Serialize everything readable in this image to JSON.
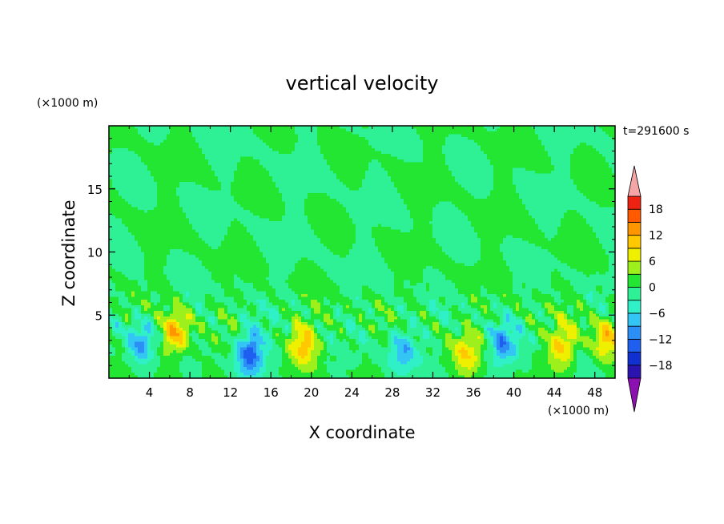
{
  "chart_data": {
    "type": "heatmap",
    "title": "vertical velocity",
    "xlabel": "X coordinate",
    "ylabel": "Z coordinate",
    "x_unit": "(×1000 m)",
    "y_unit": "(×1000 m)",
    "time_label": "t=291600 s",
    "xlim": [
      0,
      50
    ],
    "ylim": [
      0,
      20
    ],
    "x_ticks": [
      "4",
      "8",
      "12",
      "16",
      "20",
      "24",
      "28",
      "32",
      "36",
      "40",
      "44",
      "48"
    ],
    "x_tick_values": [
      4,
      8,
      12,
      16,
      20,
      24,
      28,
      32,
      36,
      40,
      44,
      48
    ],
    "y_ticks": [
      "5",
      "10",
      "15"
    ],
    "y_tick_values": [
      5,
      10,
      15
    ],
    "colorbar": {
      "levels": [
        -21,
        -18,
        -15,
        -12,
        -9,
        -6,
        -3,
        0,
        3,
        6,
        9,
        12,
        15,
        18,
        21
      ],
      "tick_labels": [
        "18",
        "12",
        "6",
        "0",
        "−6",
        "−12",
        "−18"
      ],
      "tick_values": [
        18,
        12,
        6,
        0,
        -6,
        -12,
        -18
      ],
      "colors": [
        "#5a1a9e",
        "#2a14b0",
        "#1030d0",
        "#1f5ff0",
        "#2b8ff5",
        "#33c6f5",
        "#30f0c8",
        "#2ef095",
        "#22e632",
        "#9ef01c",
        "#eef000",
        "#ffc800",
        "#ff9600",
        "#ff5a00",
        "#ee2210",
        "#cc0a0a"
      ],
      "under_color": "#8c0fb0",
      "over_color": "#f4a6a6"
    },
    "features": [
      {
        "x": 6.5,
        "z": 3.5,
        "amplitude": 13
      },
      {
        "x": 3.2,
        "z": 2.7,
        "amplitude": -10
      },
      {
        "x": 14.0,
        "z": 2.0,
        "amplitude": -14
      },
      {
        "x": 19.3,
        "z": 2.8,
        "amplitude": 10
      },
      {
        "x": 29.0,
        "z": 2.2,
        "amplitude": -9
      },
      {
        "x": 35.4,
        "z": 2.0,
        "amplitude": 8
      },
      {
        "x": 38.8,
        "z": 2.6,
        "amplitude": -10
      },
      {
        "x": 44.8,
        "z": 2.6,
        "amplitude": 10
      },
      {
        "x": 49.2,
        "z": 3.0,
        "amplitude": 11
      }
    ]
  }
}
